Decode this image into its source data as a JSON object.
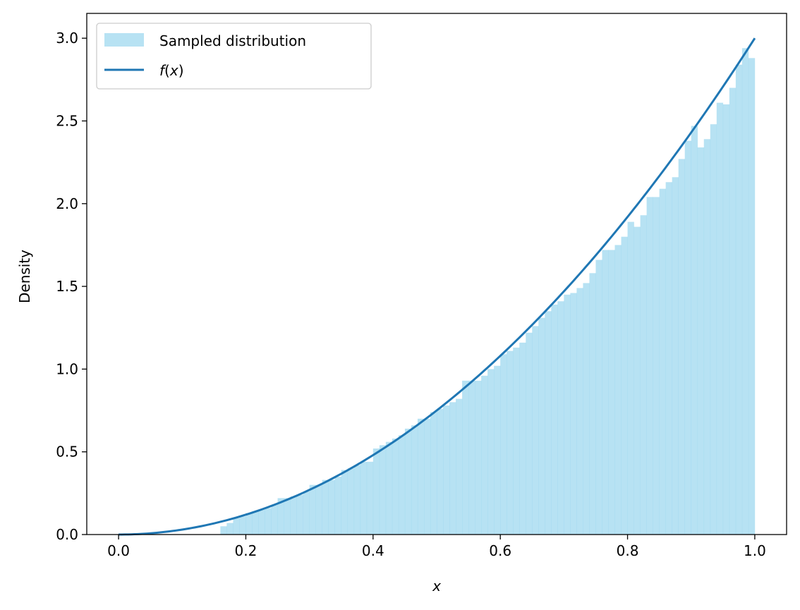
{
  "chart_data": {
    "type": "bar",
    "xlabel": "x",
    "ylabel": "Density",
    "xlim": [
      -0.05,
      1.05
    ],
    "ylim": [
      0.0,
      3.15
    ],
    "xticks": [
      "0.0",
      "0.2",
      "0.4",
      "0.6",
      "0.8",
      "1.0"
    ],
    "yticks": [
      "0.0",
      "0.5",
      "1.0",
      "1.5",
      "2.0",
      "2.5",
      "3.0"
    ],
    "legend_position": "upper-left",
    "colors": {
      "histogram": "#87ceeb",
      "line": "#1f77b4"
    },
    "histogram": {
      "name": "Sampled distribution",
      "bin_range": [
        0.0,
        1.0
      ],
      "bin_count": 100,
      "densities": [
        0.0,
        0.0,
        0.0,
        0.0,
        0.0,
        0.0,
        0.0,
        0.0,
        0.0,
        0.0,
        0.0,
        0.0,
        0.0,
        0.0,
        0.0,
        0.0,
        0.05,
        0.07,
        0.1,
        0.11,
        0.13,
        0.14,
        0.15,
        0.16,
        0.18,
        0.22,
        0.22,
        0.23,
        0.24,
        0.26,
        0.3,
        0.3,
        0.33,
        0.33,
        0.35,
        0.39,
        0.4,
        0.42,
        0.44,
        0.44,
        0.52,
        0.54,
        0.56,
        0.58,
        0.6,
        0.64,
        0.66,
        0.7,
        0.7,
        0.74,
        0.76,
        0.78,
        0.8,
        0.82,
        0.93,
        0.93,
        0.93,
        0.96,
        1.0,
        1.02,
        1.09,
        1.11,
        1.13,
        1.16,
        1.22,
        1.26,
        1.31,
        1.35,
        1.39,
        1.41,
        1.45,
        1.46,
        1.49,
        1.52,
        1.58,
        1.66,
        1.72,
        1.72,
        1.75,
        1.8,
        1.89,
        1.86,
        1.93,
        2.04,
        2.04,
        2.09,
        2.13,
        2.16,
        2.27,
        2.38,
        2.47,
        2.34,
        2.39,
        2.48,
        2.61,
        2.6,
        2.7,
        2.84,
        2.94,
        2.88
      ]
    },
    "series": [
      {
        "name": "f(x)",
        "formula": "3x^2",
        "x_range": [
          0.0,
          1.0
        ]
      }
    ]
  },
  "legend": {
    "hist_label": "Sampled distribution",
    "line_label_f": "f",
    "line_label_open": "(",
    "line_label_x": "x",
    "line_label_close": ")"
  }
}
